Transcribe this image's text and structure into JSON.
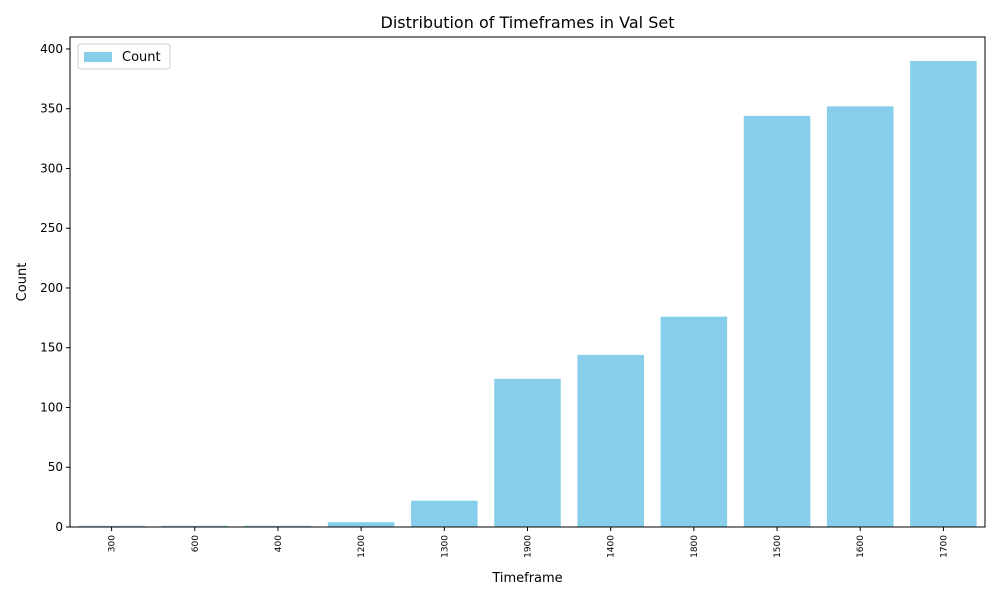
{
  "chart_data": {
    "type": "bar",
    "title": "Distribution of Timeframes in Val Set",
    "xlabel": "Timeframe",
    "ylabel": "Count",
    "categories": [
      "300",
      "600",
      "400",
      "1200",
      "1300",
      "1900",
      "1400",
      "1800",
      "1500",
      "1600",
      "1700"
    ],
    "series": [
      {
        "name": "Count",
        "color": "#87CEEB",
        "values": [
          1,
          1,
          1,
          4,
          22,
          124,
          144,
          176,
          344,
          352,
          390
        ]
      }
    ],
    "ylim": [
      0,
      410
    ],
    "yticks": [
      0,
      50,
      100,
      150,
      200,
      250,
      300,
      350,
      400
    ],
    "grid": false,
    "legend_position": "top-left"
  }
}
